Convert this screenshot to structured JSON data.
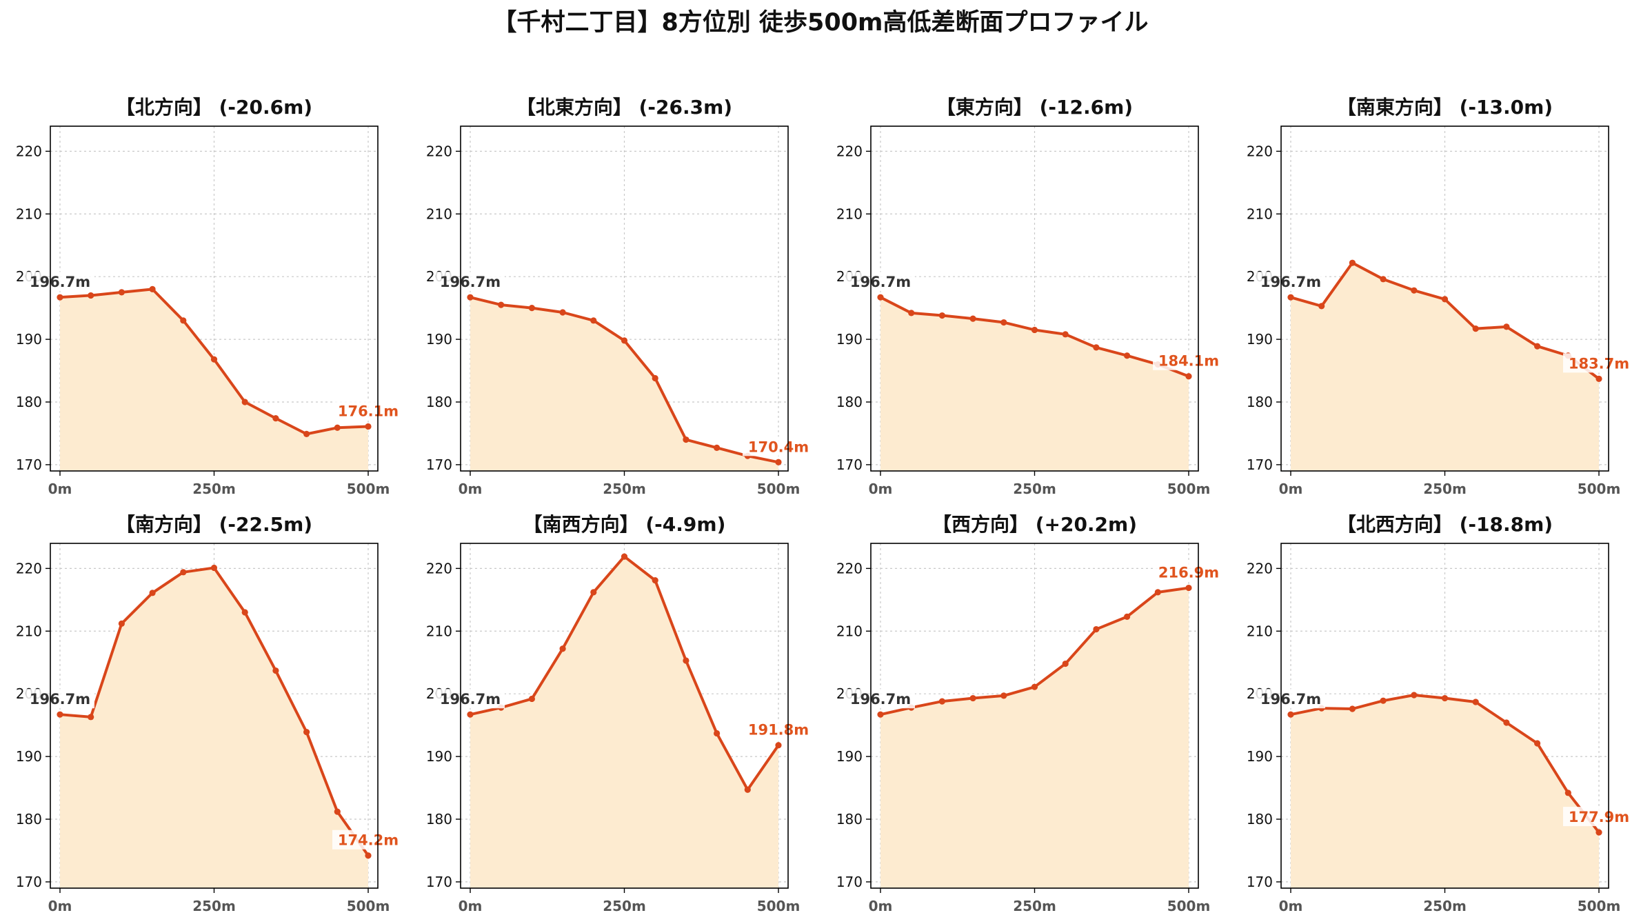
{
  "title": "【千村二丁目】8方位別 徒歩500m高低差断面プロファイル",
  "chart_data": [
    {
      "type": "area",
      "title": "【北方向】 (-20.6m)",
      "x": [
        0,
        50,
        100,
        150,
        200,
        250,
        300,
        350,
        400,
        450,
        500
      ],
      "values": [
        196.7,
        197.0,
        197.5,
        198.0,
        193.0,
        186.8,
        180.0,
        177.4,
        174.9,
        175.9,
        176.1
      ],
      "xticks": [
        "0m",
        "250m",
        "500m"
      ],
      "yticks": [
        170,
        180,
        190,
        200,
        210,
        220
      ],
      "ylim": [
        169,
        224
      ],
      "start_label": "196.7m",
      "end_label": "176.1m",
      "grid": true
    },
    {
      "type": "area",
      "title": "【北東方向】 (-26.3m)",
      "x": [
        0,
        50,
        100,
        150,
        200,
        250,
        300,
        350,
        400,
        450,
        500
      ],
      "values": [
        196.7,
        195.5,
        195.0,
        194.3,
        193.0,
        189.8,
        183.8,
        174.0,
        172.7,
        171.4,
        170.4
      ],
      "xticks": [
        "0m",
        "250m",
        "500m"
      ],
      "yticks": [
        170,
        180,
        190,
        200,
        210,
        220
      ],
      "ylim": [
        169,
        224
      ],
      "start_label": "196.7m",
      "end_label": "170.4m",
      "grid": true
    },
    {
      "type": "area",
      "title": "【東方向】 (-12.6m)",
      "x": [
        0,
        50,
        100,
        150,
        200,
        250,
        300,
        350,
        400,
        450,
        500
      ],
      "values": [
        196.7,
        194.2,
        193.8,
        193.3,
        192.7,
        191.5,
        190.8,
        188.7,
        187.4,
        186.0,
        184.1
      ],
      "xticks": [
        "0m",
        "250m",
        "500m"
      ],
      "yticks": [
        170,
        180,
        190,
        200,
        210,
        220
      ],
      "ylim": [
        169,
        224
      ],
      "start_label": "196.7m",
      "end_label": "184.1m",
      "grid": true
    },
    {
      "type": "area",
      "title": "【南東方向】 (-13.0m)",
      "x": [
        0,
        50,
        100,
        150,
        200,
        250,
        300,
        350,
        400,
        450,
        500
      ],
      "values": [
        196.7,
        195.3,
        202.2,
        199.6,
        197.8,
        196.4,
        191.7,
        192.0,
        188.9,
        187.4,
        183.7
      ],
      "xticks": [
        "0m",
        "250m",
        "500m"
      ],
      "yticks": [
        170,
        180,
        190,
        200,
        210,
        220
      ],
      "ylim": [
        169,
        224
      ],
      "start_label": "196.7m",
      "end_label": "183.7m",
      "grid": true
    },
    {
      "type": "area",
      "title": "【南方向】 (-22.5m)",
      "x": [
        0,
        50,
        100,
        150,
        200,
        250,
        300,
        350,
        400,
        450,
        500
      ],
      "values": [
        196.7,
        196.3,
        211.2,
        216.1,
        219.4,
        220.1,
        213.0,
        203.7,
        193.9,
        181.2,
        174.2
      ],
      "xticks": [
        "0m",
        "250m",
        "500m"
      ],
      "yticks": [
        170,
        180,
        190,
        200,
        210,
        220
      ],
      "ylim": [
        169,
        224
      ],
      "start_label": "196.7m",
      "end_label": "174.2m",
      "grid": true
    },
    {
      "type": "area",
      "title": "【南西方向】 (-4.9m)",
      "x": [
        0,
        50,
        100,
        150,
        200,
        250,
        300,
        350,
        400,
        450,
        500
      ],
      "values": [
        196.7,
        197.8,
        199.2,
        207.2,
        216.2,
        221.9,
        218.1,
        205.3,
        193.7,
        184.7,
        191.8
      ],
      "xticks": [
        "0m",
        "250m",
        "500m"
      ],
      "yticks": [
        170,
        180,
        190,
        200,
        210,
        220
      ],
      "ylim": [
        169,
        224
      ],
      "start_label": "196.7m",
      "end_label": "191.8m",
      "grid": true
    },
    {
      "type": "area",
      "title": "【西方向】 (+20.2m)",
      "x": [
        0,
        50,
        100,
        150,
        200,
        250,
        300,
        350,
        400,
        450,
        500
      ],
      "values": [
        196.7,
        197.8,
        198.8,
        199.3,
        199.7,
        201.1,
        204.8,
        210.3,
        212.3,
        216.2,
        216.9
      ],
      "xticks": [
        "0m",
        "250m",
        "500m"
      ],
      "yticks": [
        170,
        180,
        190,
        200,
        210,
        220
      ],
      "ylim": [
        169,
        224
      ],
      "start_label": "196.7m",
      "end_label": "216.9m",
      "grid": true
    },
    {
      "type": "area",
      "title": "【北西方向】 (-18.8m)",
      "x": [
        0,
        50,
        100,
        150,
        200,
        250,
        300,
        350,
        400,
        450,
        500
      ],
      "values": [
        196.7,
        197.7,
        197.6,
        198.9,
        199.8,
        199.3,
        198.7,
        195.4,
        192.1,
        184.2,
        177.9
      ],
      "xticks": [
        "0m",
        "250m",
        "500m"
      ],
      "yticks": [
        170,
        180,
        190,
        200,
        210,
        220
      ],
      "ylim": [
        169,
        224
      ],
      "start_label": "196.7m",
      "end_label": "177.9m",
      "grid": true
    }
  ]
}
